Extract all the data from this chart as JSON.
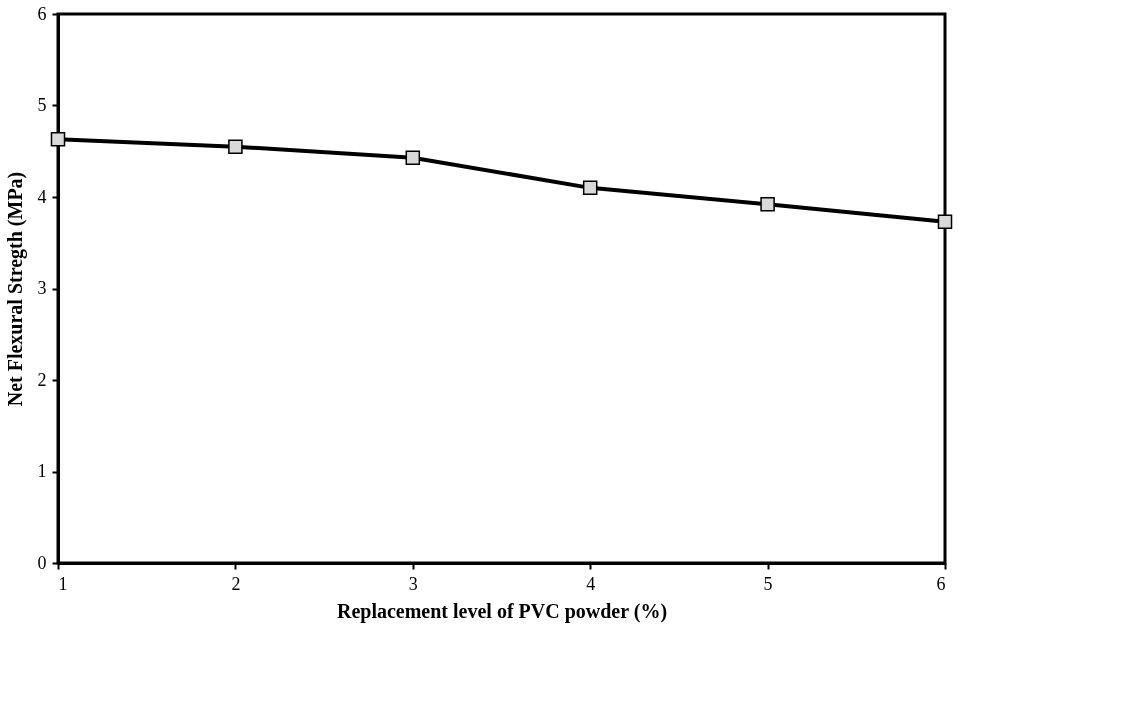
{
  "chart_data": {
    "type": "line",
    "xlabel": "Replacement level of PVC powder (%)",
    "ylabel": "Net Flexural Stregth (MPa)",
    "x": [
      1,
      2,
      3,
      4,
      5,
      6
    ],
    "series": [
      {
        "color": "#000000",
        "values": [
          4.63,
          4.55,
          4.43,
          4.1,
          3.92,
          3.73
        ]
      }
    ],
    "xlim": [
      1,
      6
    ],
    "xticks": [
      1,
      2,
      3,
      4,
      5,
      6
    ],
    "ylim": [
      0,
      6
    ],
    "yticks": [
      0,
      1,
      2,
      3,
      4,
      5,
      6
    ],
    "grid": false,
    "marker": "square",
    "line_style": "solid"
  }
}
